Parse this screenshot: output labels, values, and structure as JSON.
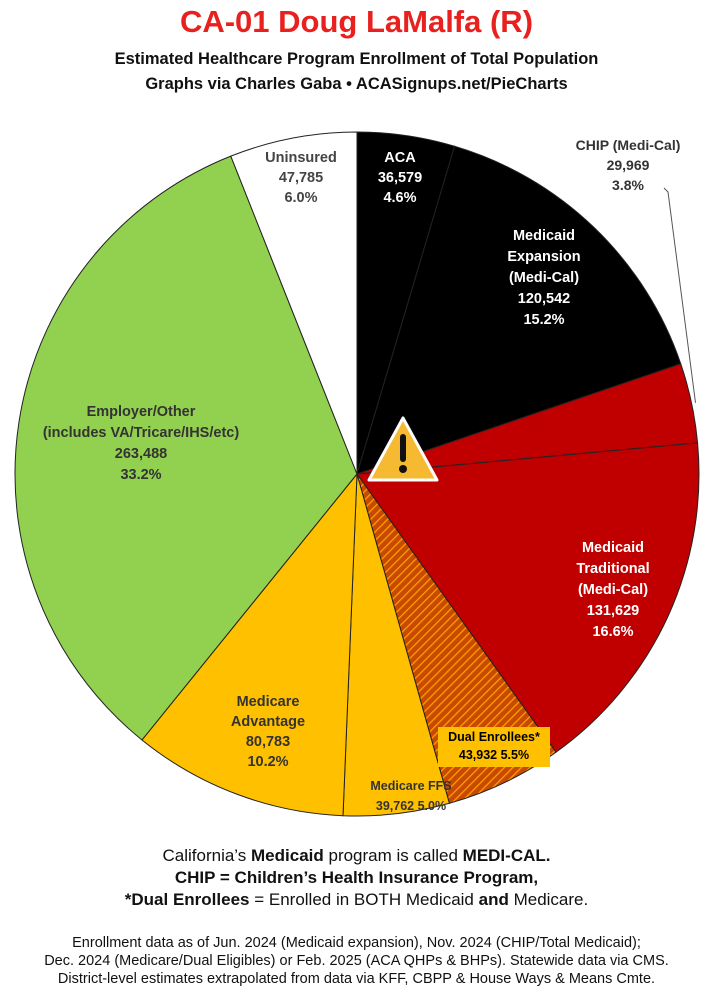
{
  "title": "CA-01 Doug LaMalfa (R)",
  "subtitle_1": "Estimated Healthcare Program Enrollment of Total Population",
  "subtitle_2": "Graphs via Charles Gaba  •  ACASignups.net/PieCharts",
  "notes": {
    "line1_pre": "California’s ",
    "line1_b1": "Medicaid",
    "line1_mid": " program is called ",
    "line1_b2": "MEDI-CAL.",
    "line2": "CHIP = Children’s Health Insurance Program,",
    "line3_b": "*Dual Enrollees",
    "line3_mid": " = Enrolled in BOTH Medicaid ",
    "line3_b2": "and",
    "line3_end": " Medicare."
  },
  "footer": {
    "line1": "Enrollment data as of Jun. 2024 (Medicaid expansion), Nov. 2024 (CHIP/Total Medicaid);",
    "line2": "Dec. 2024 (Medicare/Dual Eligibles) or Feb. 2025 (ACA QHPs & BHPs). Statewide data via CMS.",
    "line3": "District-level estimates extrapolated from data via KFF, CBPP & House Ways & Means Cmte."
  },
  "warning_icon": "warning-triangle-icon",
  "chart_data": {
    "type": "pie",
    "title": "CA-01 Doug LaMalfa (R)",
    "slices": [
      {
        "name": "ACA",
        "lines": [
          "ACA",
          "36,579",
          "4.6%"
        ],
        "value": 36579,
        "percent": 4.6,
        "color": "#000000",
        "text_color": "#ffffff"
      },
      {
        "name": "Medicaid Expansion (Medi-Cal)",
        "lines": [
          "Medicaid",
          "Expansion",
          "(Medi-Cal)",
          "120,542",
          "15.2%"
        ],
        "value": 120542,
        "percent": 15.2,
        "color": "#000000",
        "text_color": "#ffffff"
      },
      {
        "name": "CHIP (Medi-Cal)",
        "lines": [
          "CHIP (Medi-Cal)",
          "29,969",
          "3.8%"
        ],
        "value": 29969,
        "percent": 3.8,
        "color": "#c00000",
        "text_color": "#333333"
      },
      {
        "name": "Medicaid Traditional (Medi-Cal)",
        "lines": [
          "Medicaid",
          "Traditional",
          "(Medi-Cal)",
          "131,629",
          "16.6%"
        ],
        "value": 131629,
        "percent": 16.6,
        "color": "#c00000",
        "text_color": "#ffffff"
      },
      {
        "name": "Dual Enrollees*",
        "lines": [
          "Dual Enrollees*",
          "43,932 5.5%"
        ],
        "value": 43932,
        "percent": 5.5,
        "color": "#c84a00",
        "text_color": "#000000"
      },
      {
        "name": "Medicare FFS",
        "lines": [
          "Medicare FFS",
          "39,762 5.0%"
        ],
        "value": 39762,
        "percent": 5.0,
        "color": "#ffc000",
        "text_color": "#333333"
      },
      {
        "name": "Medicare Advantage",
        "lines": [
          "Medicare",
          "Advantage",
          "80,783",
          "10.2%"
        ],
        "value": 80783,
        "percent": 10.2,
        "color": "#ffc000",
        "text_color": "#333333"
      },
      {
        "name": "Employer/Other (includes VA/Tricare/IHS/etc)",
        "lines": [
          "Employer/Other",
          "(includes VA/Tricare/IHS/etc)",
          "263,488",
          "33.2%"
        ],
        "value": 263488,
        "percent": 33.2,
        "color": "#92d050",
        "text_color": "#333333"
      },
      {
        "name": "Uninsured",
        "lines": [
          "Uninsured",
          "47,785",
          "6.0%"
        ],
        "value": 47785,
        "percent": 6.0,
        "color": "#ffffff",
        "text_color": "#444444"
      }
    ]
  }
}
